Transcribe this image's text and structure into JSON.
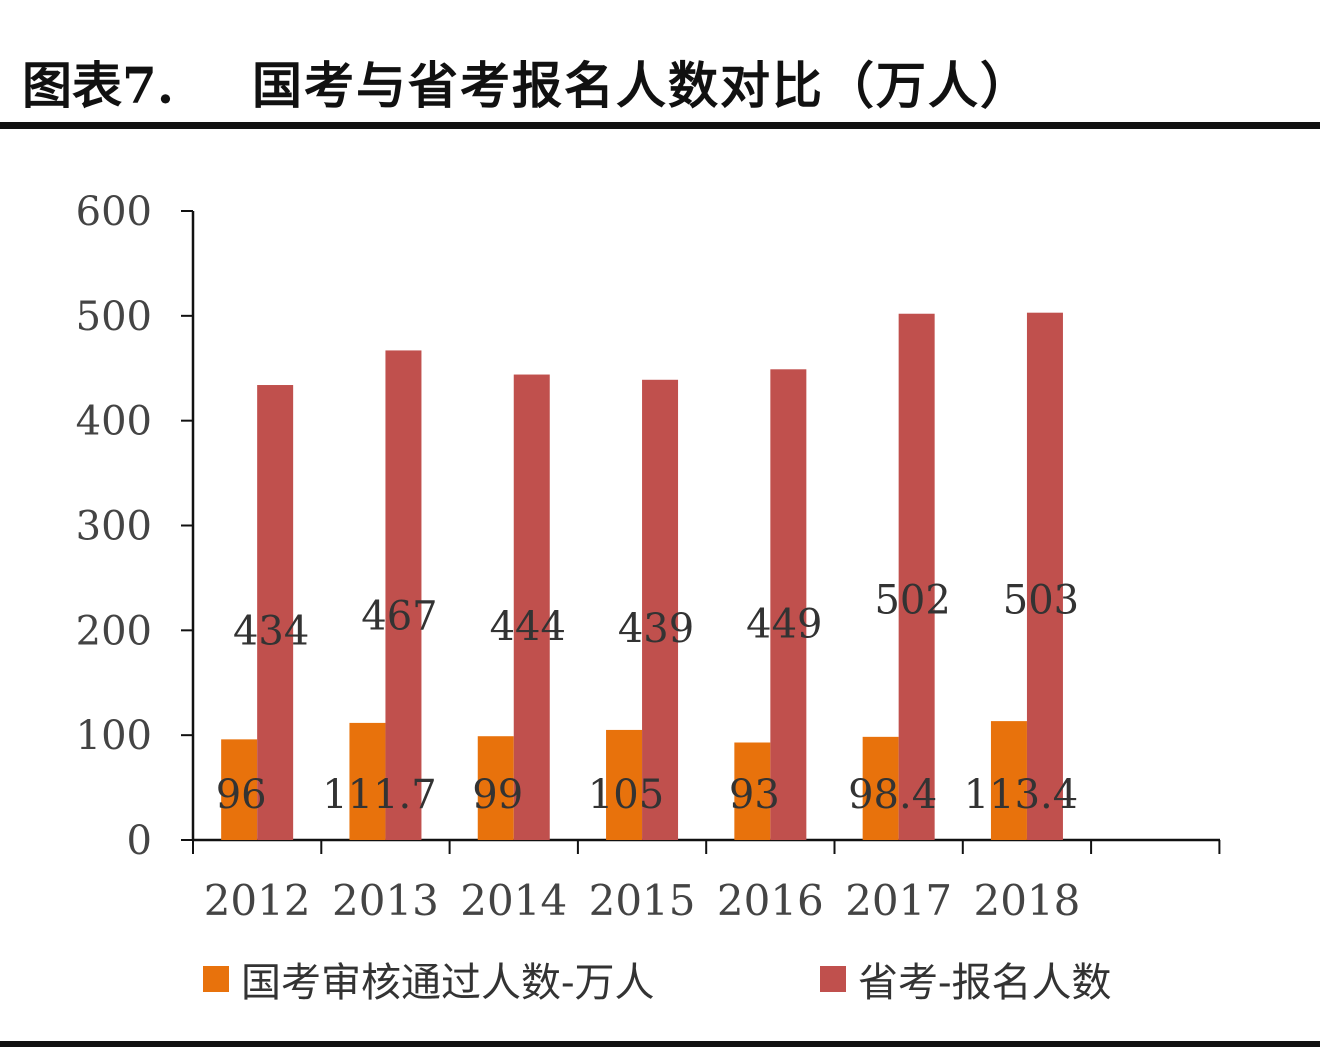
{
  "header": {
    "figure_label": "图表7.",
    "title": "国考与省考报名人数对比（万人）"
  },
  "colors": {
    "series_national": "#E8720C",
    "series_provincial": "#C0504D",
    "axis": "#111111",
    "tick_text": "#444444",
    "label_text": "#333333"
  },
  "legend": {
    "items": [
      {
        "label": "国考审核通过人数-万人",
        "color": "#E8720C"
      },
      {
        "label": "省考-报名人数",
        "color": "#C0504D"
      }
    ]
  },
  "chart_data": {
    "type": "bar",
    "categories": [
      "2012",
      "2013",
      "2014",
      "2015",
      "2016",
      "2017",
      "2018"
    ],
    "series": [
      {
        "name": "国考审核通过人数-万人",
        "values": [
          96,
          111.7,
          99,
          105,
          93,
          98.4,
          113.4
        ],
        "labels": [
          "96",
          "111.7",
          "99",
          "105",
          "93",
          "98.4",
          "113.4"
        ]
      },
      {
        "name": "省考-报名人数",
        "values": [
          434,
          467,
          444,
          439,
          449,
          502,
          503
        ],
        "labels": [
          "434",
          "467",
          "444",
          "439",
          "449",
          "502",
          "503"
        ]
      }
    ],
    "ylim": [
      0,
      600
    ],
    "yticks": [
      "0",
      "100",
      "200",
      "300",
      "400",
      "500",
      "600"
    ],
    "grid": false,
    "legend_position": "bottom"
  }
}
